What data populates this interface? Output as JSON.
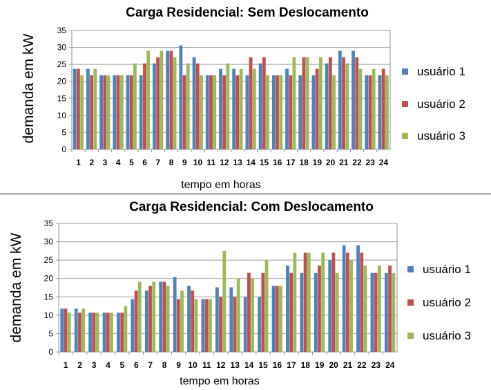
{
  "chart_data": [
    {
      "type": "bar",
      "title": "Carga Residencial: Sem Deslocamento",
      "xlabel": "tempo em horas",
      "ylabel": "demanda em kW",
      "ylim": [
        0,
        35
      ],
      "yticks": [
        0,
        5,
        10,
        15,
        20,
        25,
        30,
        35
      ],
      "grid": true,
      "legend_position": "right",
      "categories": [
        "1",
        "2",
        "3",
        "4",
        "5",
        "6",
        "7",
        "8",
        "9",
        "10",
        "11",
        "12",
        "13",
        "14",
        "15",
        "16",
        "17",
        "18",
        "19",
        "20",
        "21",
        "22",
        "23",
        "24"
      ],
      "series": [
        {
          "name": "usuário 1",
          "color": "#4f81bd",
          "values": [
            23.7,
            23.7,
            21.8,
            21.8,
            21.8,
            21.8,
            25.3,
            29,
            30.6,
            27.1,
            21.8,
            23.7,
            23.7,
            21.8,
            25.3,
            21.8,
            23.7,
            21.8,
            21.8,
            25.3,
            29,
            29,
            21.8,
            21.8
          ]
        },
        {
          "name": "usuário 2",
          "color": "#c0504d",
          "values": [
            23.7,
            21.8,
            21.8,
            21.8,
            21.8,
            25.3,
            27.1,
            29,
            21.8,
            25.3,
            21.8,
            21.8,
            21.8,
            27.1,
            27.1,
            21.8,
            21.8,
            27.1,
            23.7,
            27.1,
            27.1,
            27.1,
            21.8,
            23.7
          ]
        },
        {
          "name": "usuário 3",
          "color": "#9bbb59",
          "values": [
            21.8,
            23.7,
            21.8,
            21.8,
            25.3,
            29,
            29,
            27.1,
            25.3,
            21.8,
            21.8,
            25.3,
            23.7,
            23.7,
            21.8,
            21.8,
            27.1,
            27.1,
            27.1,
            21.8,
            25.3,
            23.7,
            23.7,
            21.8
          ]
        }
      ]
    },
    {
      "type": "bar",
      "title": "Carga Residencial: Com Deslocamento",
      "xlabel": "tempo em horas",
      "ylabel": "demanda em kW",
      "ylim": [
        0,
        35
      ],
      "yticks": [
        0,
        5,
        10,
        15,
        20,
        25,
        30,
        35
      ],
      "grid": true,
      "legend_position": "right",
      "categories": [
        "1",
        "2",
        "3",
        "4",
        "5",
        "6",
        "7",
        "8",
        "9",
        "10",
        "11",
        "12",
        "13",
        "14",
        "15",
        "16",
        "17",
        "18",
        "19",
        "20",
        "21",
        "22",
        "23",
        "24"
      ],
      "series": [
        {
          "name": "usuário 1",
          "color": "#4f81bd",
          "values": [
            11.8,
            11.8,
            10.7,
            10.7,
            10.7,
            14.4,
            16.7,
            19.1,
            20.4,
            18,
            14.4,
            17.6,
            17.6,
            15,
            15,
            18,
            23.5,
            21.5,
            21.5,
            25,
            29,
            29,
            21.5,
            21.5
          ]
        },
        {
          "name": "usuário 2",
          "color": "#c0504d",
          "values": [
            11.8,
            10.7,
            10.7,
            10.7,
            10.7,
            16.7,
            18,
            19.1,
            14.4,
            16.7,
            14.4,
            15,
            15,
            21.5,
            21.5,
            18,
            21.5,
            27,
            23.5,
            27,
            27,
            27,
            21.5,
            23.5
          ]
        },
        {
          "name": "usuário 3",
          "color": "#9bbb59",
          "values": [
            10.7,
            11.8,
            10.7,
            10.7,
            12.5,
            19.1,
            19.1,
            18,
            16.7,
            14.4,
            14.4,
            27.5,
            20,
            20,
            25,
            18,
            27,
            27,
            27,
            21.5,
            25,
            23.5,
            23.5,
            21.5
          ]
        }
      ]
    }
  ]
}
